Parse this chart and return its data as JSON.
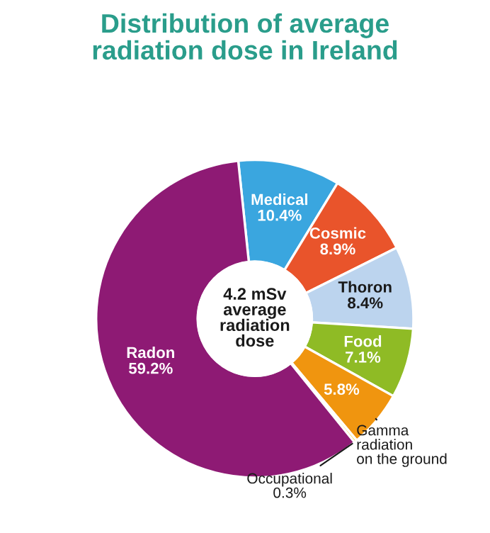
{
  "chart_data": {
    "type": "donut",
    "title": "Distribution of average\nradiation dose in Ireland",
    "categories": [
      "Medical",
      "Cosmic",
      "Thoron",
      "Food",
      "Gamma\nradiation\non the ground",
      "Occupational",
      "Radon"
    ],
    "values": [
      10.4,
      8.9,
      8.4,
      7.1,
      5.8,
      0.3,
      59.2
    ],
    "value_labels": [
      "10.4%",
      "8.9%",
      "8.4%",
      "7.1%",
      "5.8%",
      "0.3%",
      "59.2%"
    ],
    "colors": [
      "#3aa6df",
      "#e9542b",
      "#bcd4ee",
      "#8fbb25",
      "#f0950f",
      "#f3d21f",
      "#8e1a74"
    ],
    "annotations": [
      "4.2 mSv\naverage\nradiation\ndose"
    ]
  }
}
